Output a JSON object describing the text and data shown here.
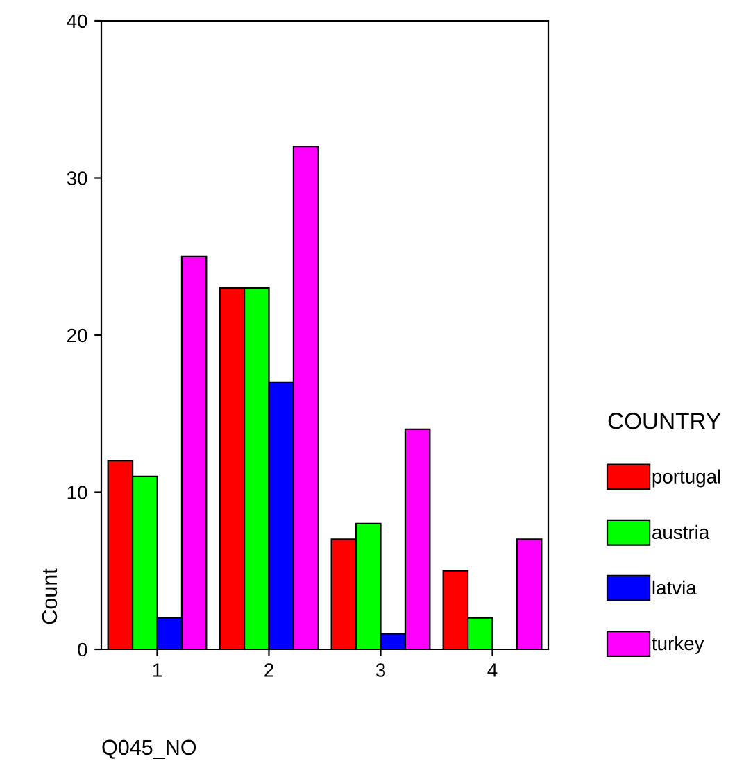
{
  "chart_data": {
    "type": "bar",
    "xlabel": "Q045_NO",
    "ylabel": "Count",
    "legend_title": "COUNTRY",
    "categories": [
      "1",
      "2",
      "3",
      "4"
    ],
    "series": [
      {
        "name": "portugal",
        "color": "#ff0000",
        "values": [
          12,
          23,
          7,
          5
        ]
      },
      {
        "name": "austria",
        "color": "#00ff00",
        "values": [
          11,
          23,
          8,
          2
        ]
      },
      {
        "name": "latvia",
        "color": "#0000ff",
        "values": [
          2,
          17,
          1,
          null
        ]
      },
      {
        "name": "turkey",
        "color": "#ff00ff",
        "values": [
          25,
          32,
          14,
          7
        ]
      }
    ],
    "ylim": [
      0,
      40
    ],
    "yticks": [
      0,
      10,
      20,
      30,
      40
    ],
    "grid": false,
    "legend": "right"
  }
}
